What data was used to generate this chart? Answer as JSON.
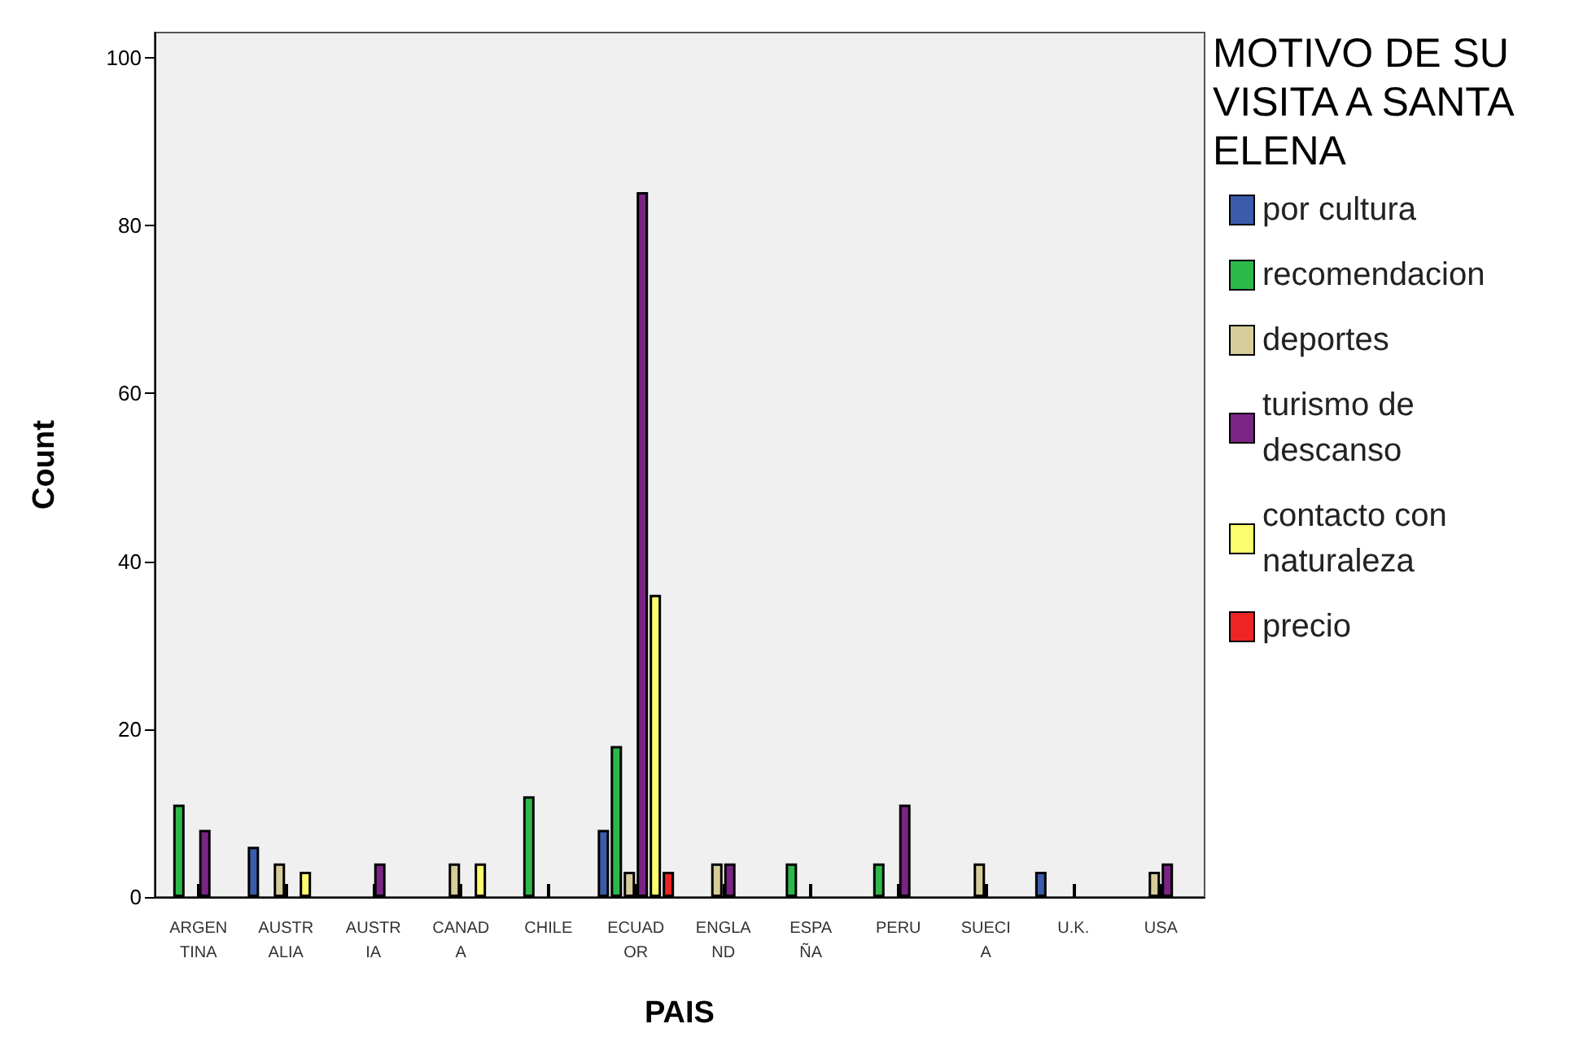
{
  "chart_data": {
    "type": "bar",
    "xlabel": "PAIS",
    "ylabel": "Count",
    "legend_title": "MOTIVO DE SU VISITA A SANTA ELENA",
    "categories": [
      "ARGENTINA",
      "AUSTRALIA",
      "AUSTRIA",
      "CANADA",
      "CHILE",
      "ECUADOR",
      "ENGLAND",
      "ESPAÑA",
      "PERU",
      "SUECIA",
      "U.K.",
      "USA"
    ],
    "series": [
      {
        "name": "por cultura",
        "color": "#3b5bab",
        "values": [
          null,
          6,
          null,
          null,
          null,
          8,
          null,
          null,
          null,
          null,
          3,
          null
        ]
      },
      {
        "name": "recomendacion",
        "color": "#2db84a",
        "values": [
          11,
          null,
          null,
          null,
          12,
          18,
          null,
          4,
          4,
          null,
          null,
          null
        ]
      },
      {
        "name": "deportes",
        "color": "#d5cc99",
        "values": [
          null,
          4,
          null,
          4,
          null,
          3,
          4,
          null,
          null,
          4,
          null,
          3
        ]
      },
      {
        "name": "turismo de descanso",
        "color": "#7a2484",
        "values": [
          8,
          null,
          4,
          null,
          null,
          84,
          4,
          null,
          11,
          null,
          null,
          4
        ]
      },
      {
        "name": "contacto con naturaleza",
        "color": "#fdfb6e",
        "values": [
          null,
          3,
          null,
          4,
          null,
          36,
          null,
          null,
          null,
          null,
          null,
          null
        ]
      },
      {
        "name": "precio",
        "color": "#ee2424",
        "values": [
          null,
          null,
          null,
          null,
          null,
          3,
          null,
          null,
          null,
          null,
          null,
          null
        ]
      }
    ],
    "ylim": [
      0,
      103
    ],
    "yticks": [
      0,
      20,
      40,
      60,
      80,
      100
    ],
    "grid": false,
    "legend": "right"
  }
}
